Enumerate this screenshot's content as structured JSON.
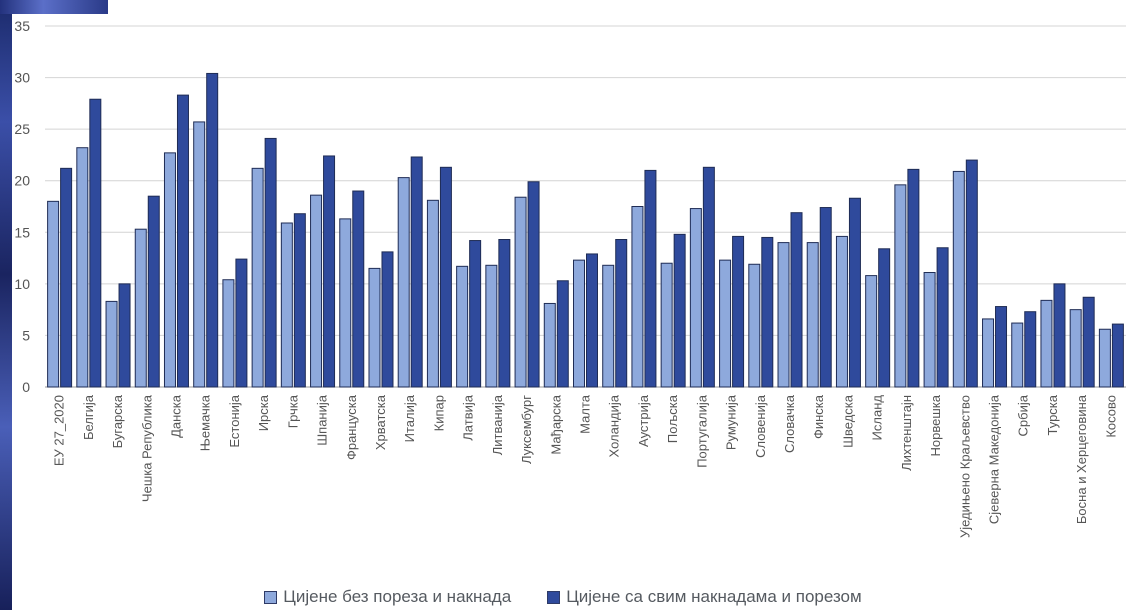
{
  "chart_data": {
    "type": "bar",
    "categories": [
      "ЕУ 27_2020",
      "Белгија",
      "Бугарска",
      "Чешка Република",
      "Данска",
      "Њемачка",
      "Естонија",
      "Ирска",
      "Грчка",
      "Шпанија",
      "Француска",
      "Хрватска",
      "Италија",
      "Кипар",
      "Латвија",
      "Литванија",
      "Луксембург",
      "Мађарска",
      "Малта",
      "Холандија",
      "Аустрија",
      "Пољска",
      "Португалија",
      "Румунија",
      "Словенија",
      "Словачка",
      "Финска",
      "Шведска",
      "Исланд",
      "Лихтенштајн",
      "Норвешка",
      "Уједињено Краљевство",
      "Сјеверна Македонија",
      "Србија",
      "Турска",
      "Босна и Херцеговина",
      "Косово"
    ],
    "series": [
      {
        "name": "Цијене без пореза и накнада",
        "color": "#8ea9dc",
        "values": [
          18.0,
          23.2,
          8.3,
          15.3,
          22.7,
          25.7,
          10.4,
          21.2,
          15.9,
          18.6,
          16.3,
          11.5,
          20.3,
          18.1,
          11.7,
          11.8,
          18.4,
          8.1,
          12.3,
          11.8,
          17.5,
          12.0,
          17.3,
          12.3,
          11.9,
          14.0,
          14.0,
          14.6,
          10.8,
          19.6,
          11.1,
          20.9,
          6.6,
          6.2,
          8.4,
          7.5,
          5.6
        ]
      },
      {
        "name": "Цијене са свим накнадама и порезом",
        "color": "#2f4a9c",
        "values": [
          21.2,
          27.9,
          10.0,
          18.5,
          28.3,
          30.4,
          12.4,
          24.1,
          16.8,
          22.4,
          19.0,
          13.1,
          22.3,
          21.3,
          14.2,
          14.3,
          19.9,
          10.3,
          12.9,
          14.3,
          21.0,
          14.8,
          21.3,
          14.6,
          14.5,
          16.9,
          17.4,
          18.3,
          13.4,
          21.1,
          13.5,
          22.0,
          7.8,
          7.3,
          10.0,
          8.7,
          6.1
        ]
      }
    ],
    "ylim": [
      0,
      35
    ],
    "yticks": [
      0,
      5,
      10,
      15,
      20,
      25,
      30,
      35
    ],
    "grid": true,
    "legend_position": "bottom"
  }
}
